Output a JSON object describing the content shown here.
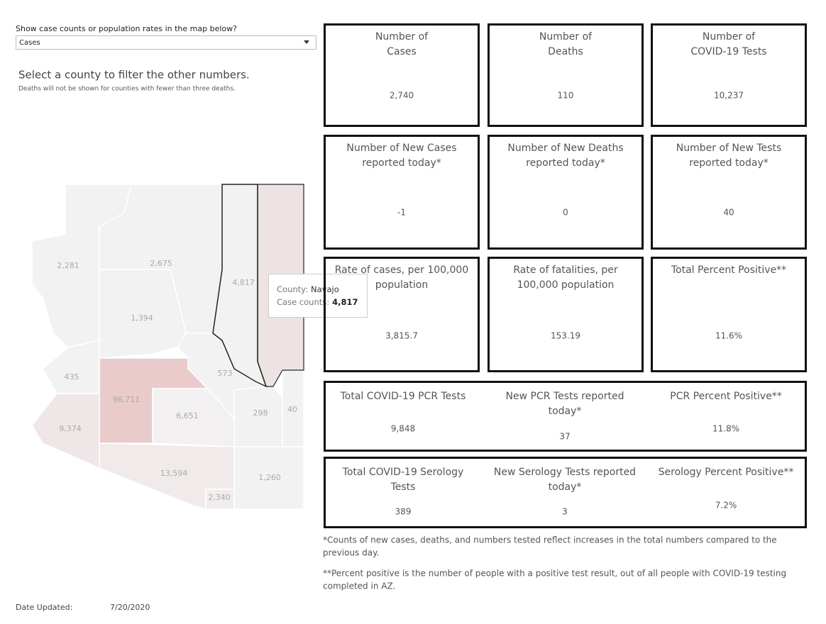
{
  "filter": {
    "label": "Show case counts or population rates in the map below?",
    "selected": "Cases"
  },
  "map_header": {
    "title": "Select a county to filter the other numbers.",
    "note": "Deaths will not be shown for counties with fewer than three deaths."
  },
  "map": {
    "county_labels": [
      "2,281",
      "2,675",
      "4,817",
      "1,394",
      "435",
      "573",
      "96,711",
      "6,651",
      "298",
      "40",
      "9,374",
      "13,594",
      "1,260",
      "2,340"
    ],
    "tooltip": {
      "county_label": "County:",
      "county": "Navajo",
      "count_label": "Case counts:",
      "count": "4,817"
    }
  },
  "tiles": [
    {
      "title": [
        "Number of",
        "Cases"
      ],
      "value": "2,740"
    },
    {
      "title": [
        "Number of",
        "Deaths"
      ],
      "value": "110"
    },
    {
      "title": [
        "Number of",
        "COVID-19 Tests"
      ],
      "value": "10,237"
    },
    {
      "title": [
        "Number of New Cases",
        "reported today*"
      ],
      "value": "-1"
    },
    {
      "title": [
        "Number of New Deaths",
        "reported today*"
      ],
      "value": "0"
    },
    {
      "title": [
        "Number of New Tests",
        "reported today*"
      ],
      "value": "40"
    },
    {
      "title": [
        "Rate of cases, per 100,000",
        "population"
      ],
      "value": "3,815.7"
    },
    {
      "title": [
        "Rate of fatalities, per",
        "100,000 population"
      ],
      "value": "153.19"
    },
    {
      "title": [
        "Total Percent Positive**"
      ],
      "value": "11.6%"
    }
  ],
  "wide_rows": [
    [
      {
        "title": [
          "Total COVID-19 PCR Tests"
        ],
        "value": "9,848"
      },
      {
        "title": [
          "New PCR Tests reported",
          "today*"
        ],
        "value": "37"
      },
      {
        "title": [
          "PCR Percent Positive**"
        ],
        "value": "11.8%"
      }
    ],
    [
      {
        "title": [
          "Total COVID-19 Serology",
          "Tests"
        ],
        "value": "389"
      },
      {
        "title": [
          "New Serology Tests reported",
          "today*"
        ],
        "value": "3"
      },
      {
        "title": [
          "Serology Percent Positive**"
        ],
        "value": "7.2%"
      }
    ]
  ],
  "footnotes": [
    [
      "*Counts of new cases, deaths, and numbers tested reflect increases in the total numbers compared to the",
      "previous day."
    ],
    [
      "**Percent positive is the number of people with a positive test result, out of all people with COVID-19 testing",
      "completed in AZ."
    ]
  ],
  "updated": {
    "label": "Date Updated:",
    "date": "7/20/2020"
  }
}
